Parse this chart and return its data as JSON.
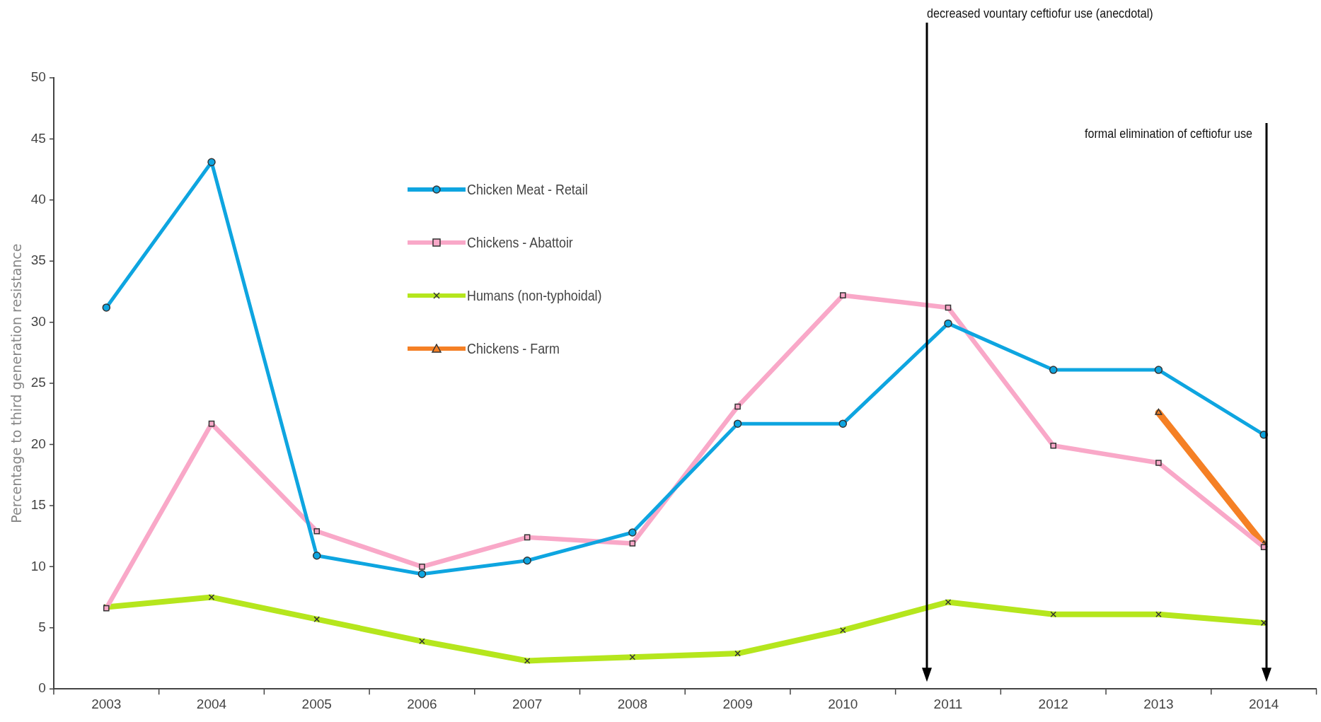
{
  "chart_data": {
    "type": "line",
    "categories": [
      "2003",
      "2004",
      "2005",
      "2006",
      "2007",
      "2008",
      "2009",
      "2010",
      "2011",
      "2012",
      "2013",
      "2014"
    ],
    "ylabel": "Percentage to third generation resistance",
    "ylim": [
      0,
      50
    ],
    "yticks": [
      0,
      5,
      10,
      15,
      20,
      25,
      30,
      35,
      40,
      45,
      50
    ],
    "grid": false,
    "legend": "top left",
    "line_style": "solid",
    "annotations": [
      "decreased vountary ceftiofur use (anecdotal)",
      "formal elimination of ceftiofur use"
    ],
    "series": [
      {
        "name": "Chicken Meat - Retail",
        "color": "#0ea5e0",
        "marker": "circle",
        "values": [
          31.2,
          43.1,
          10.9,
          9.4,
          10.5,
          12.8,
          21.7,
          21.7,
          29.9,
          26.1,
          26.1,
          20.8
        ]
      },
      {
        "name": "Chickens - Abattoir",
        "color": "#f9a8c8",
        "marker": "square",
        "values": [
          6.6,
          21.7,
          12.9,
          10.0,
          12.4,
          11.9,
          23.1,
          32.2,
          31.2,
          19.9,
          18.5,
          11.6
        ]
      },
      {
        "name": "Humans (non-typhoidal)",
        "color": "#b5e61d",
        "marker": "cross",
        "values": [
          6.7,
          7.5,
          5.7,
          3.9,
          2.3,
          2.6,
          2.9,
          4.8,
          7.1,
          6.1,
          6.1,
          5.4
        ]
      },
      {
        "name": "Chickens - Farm",
        "color": "#f58025",
        "marker": "triangle",
        "values": [
          null,
          null,
          null,
          null,
          null,
          null,
          null,
          null,
          null,
          null,
          22.6,
          11.8
        ]
      }
    ]
  }
}
